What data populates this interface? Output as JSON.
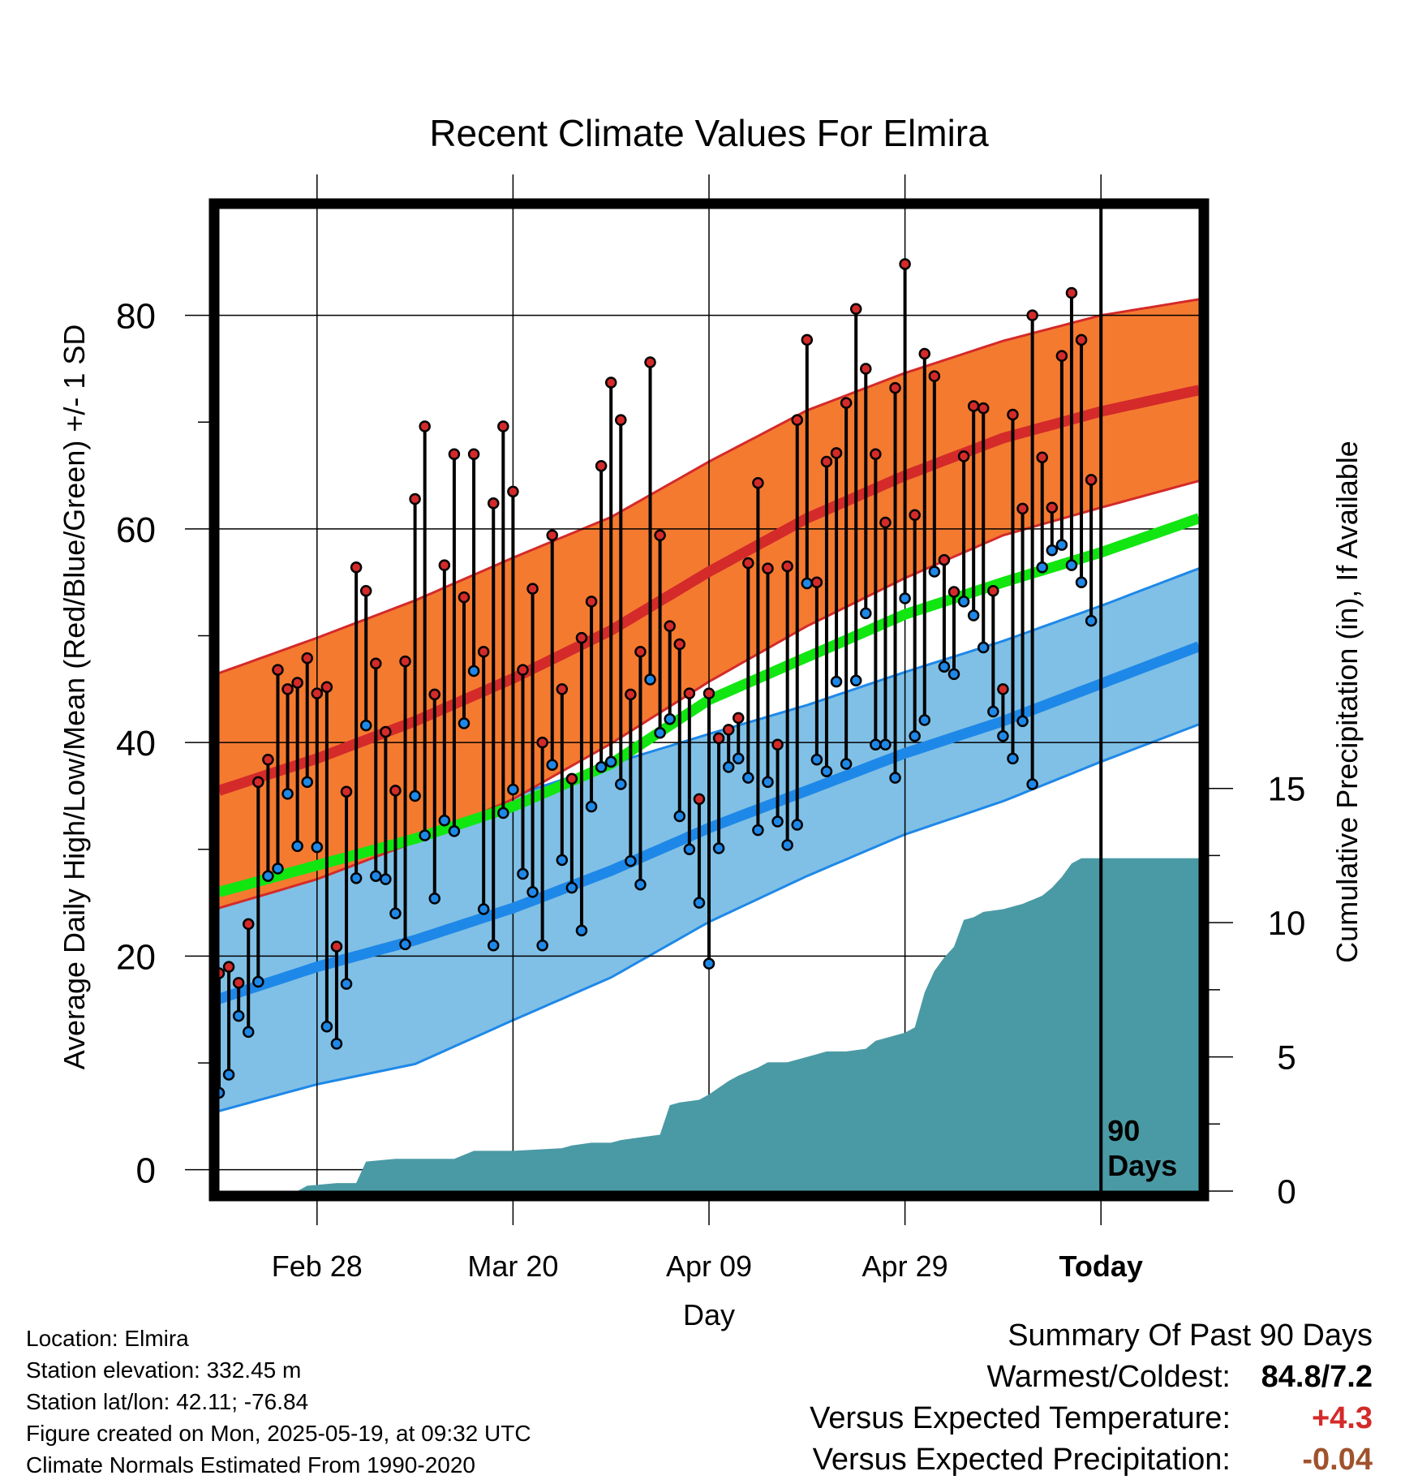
{
  "chart_data": {
    "type": "line",
    "title": "Recent Climate Values For Elmira",
    "xlabel": "Day",
    "ylabel": "Average Daily High/Low/Mean (Red/Blue/Green) +/- 1 SD",
    "y2label": "Cumulative Precipitation (in), If Available",
    "ylim": [
      -2,
      90
    ],
    "y2lim": [
      0,
      36.6
    ],
    "yticks": [
      0,
      20,
      40,
      60,
      80
    ],
    "y2ticks": [
      0,
      5,
      10,
      15
    ],
    "xlim": [
      0,
      100
    ],
    "xticks": [
      {
        "x": 10,
        "label": "Feb 28"
      },
      {
        "x": 30,
        "label": "Mar 20"
      },
      {
        "x": 50,
        "label": "Apr 09"
      },
      {
        "x": 70,
        "label": "Apr 29"
      },
      {
        "x": 90,
        "label": "Today"
      }
    ],
    "today_label": [
      "90",
      "Days"
    ],
    "grid": true,
    "colors": {
      "high_band": "#f47a30",
      "high_line": "#d42a2a",
      "low_band": "#80c0e6",
      "low_line": "#1e88e8",
      "mean_line": "#11e611",
      "precip": "#4a9aa5",
      "high_point": "#d42a2a",
      "low_point": "#1e88e8"
    },
    "normal_high": {
      "x": [
        0,
        10,
        20,
        30,
        40,
        50,
        60,
        70,
        80,
        90,
        100
      ],
      "mean": [
        35.5,
        38.5,
        42,
        46,
        50.5,
        56,
        61,
        65,
        68.5,
        71,
        73
      ],
      "sd": [
        11,
        11.3,
        11.3,
        11.3,
        10.6,
        10.3,
        10.1,
        9.6,
        9.1,
        9,
        8.5
      ]
    },
    "normal_low": {
      "x": [
        0,
        10,
        20,
        30,
        40,
        50,
        60,
        70,
        80,
        90,
        100
      ],
      "mean": [
        16,
        19,
        21.5,
        24.5,
        28,
        32,
        35.5,
        39,
        42,
        45.5,
        49
      ],
      "sd": [
        10.5,
        11,
        11.6,
        10.5,
        10,
        8.8,
        8,
        7.6,
        7.5,
        7.3,
        7.3
      ]
    },
    "normal_mean": {
      "x": [
        0,
        10,
        20,
        30,
        40,
        50,
        60,
        70,
        80,
        90,
        100
      ],
      "values": [
        26,
        28.5,
        31,
        34,
        38,
        44,
        48,
        52,
        55,
        57.8,
        61
      ]
    },
    "daily": {
      "x": [
        0,
        1,
        2,
        3,
        4,
        5,
        6,
        7,
        8,
        9,
        10,
        11,
        12,
        13,
        14,
        15,
        16,
        17,
        18,
        19,
        20,
        21,
        22,
        23,
        24,
        25,
        26,
        27,
        28,
        29,
        30,
        31,
        32,
        33,
        34,
        35,
        36,
        37,
        38,
        39,
        40,
        41,
        42,
        43,
        44,
        45,
        46,
        47,
        48,
        49,
        50,
        51,
        52,
        53,
        54,
        55,
        56,
        57,
        58,
        59,
        60,
        61,
        62,
        63,
        64,
        65,
        66,
        67,
        68,
        69,
        70,
        71,
        72,
        73,
        74,
        75,
        76,
        77,
        78,
        79,
        80,
        81,
        82,
        83,
        84,
        85,
        86,
        87,
        88,
        89
      ],
      "high": [
        18.4,
        19,
        17.5,
        23,
        36.3,
        38.4,
        46.8,
        45,
        45.6,
        47.9,
        44.6,
        45.2,
        20.9,
        35.4,
        56.4,
        54.2,
        47.4,
        41,
        35.5,
        47.6,
        62.8,
        69.6,
        44.5,
        56.6,
        67,
        53.6,
        67,
        48.5,
        62.4,
        69.6,
        63.5,
        46.8,
        54.4,
        40,
        59.4,
        45,
        36.6,
        49.8,
        53.2,
        65.9,
        73.7,
        70.2,
        44.5,
        48.5,
        75.6,
        59.4,
        50.9,
        49.2,
        44.6,
        34.7,
        44.6,
        40.4,
        41.2,
        42.3,
        56.8,
        64.3,
        56.3,
        39.8,
        56.5,
        70.2,
        77.7,
        55,
        66.3,
        67.1,
        71.8,
        80.6,
        75,
        67,
        60.6,
        73.2,
        84.8,
        61.3,
        76.4,
        74.3,
        57.1,
        54.1,
        66.8,
        71.5,
        71.3,
        54.2,
        45,
        70.7,
        61.9,
        80,
        66.7,
        62,
        76.2,
        82.1,
        77.7,
        64.6
      ],
      "low": [
        7.2,
        8.9,
        14.4,
        12.9,
        17.6,
        27.5,
        28.2,
        35.2,
        30.3,
        36.3,
        30.2,
        13.4,
        11.8,
        17.4,
        27.3,
        41.6,
        27.5,
        27.2,
        24,
        21.1,
        35,
        31.3,
        25.4,
        32.7,
        31.7,
        41.8,
        46.7,
        24.4,
        21,
        33.4,
        35.6,
        27.7,
        26,
        21,
        37.9,
        29,
        26.4,
        22.4,
        34,
        37.7,
        38.2,
        36.1,
        28.9,
        26.7,
        45.9,
        40.9,
        42.2,
        33.1,
        30,
        25,
        19.3,
        30.1,
        37.7,
        38.5,
        36.7,
        31.8,
        36.3,
        32.6,
        30.4,
        32.3,
        54.9,
        38.4,
        37.3,
        45.7,
        38,
        45.8,
        52.1,
        39.8,
        39.8,
        36.7,
        53.5,
        40.6,
        42.1,
        56,
        47.1,
        46.4,
        53.2,
        51.9,
        48.9,
        42.9,
        40.6,
        38.5,
        42,
        36.1,
        56.4,
        58,
        58.5,
        56.6,
        55,
        51.4
      ]
    },
    "cumulative_precip": {
      "x": [
        0,
        8,
        9,
        12,
        14,
        15,
        18,
        22,
        24,
        26,
        27,
        30,
        35,
        36,
        38,
        39,
        40,
        41,
        43,
        45,
        46,
        47,
        49,
        50,
        52,
        53,
        55,
        56,
        58,
        60,
        62,
        64,
        66,
        67,
        70,
        71,
        72,
        73,
        74,
        75,
        76,
        77,
        78,
        80,
        82,
        84,
        85,
        86,
        87,
        88,
        89,
        100
      ],
      "values": [
        0,
        0,
        0.2,
        0.3,
        0.3,
        1.1,
        1.2,
        1.2,
        1.2,
        1.5,
        1.5,
        1.5,
        1.6,
        1.7,
        1.8,
        1.8,
        1.8,
        1.9,
        2,
        2.1,
        3.2,
        3.3,
        3.4,
        3.6,
        4.1,
        4.3,
        4.6,
        4.8,
        4.8,
        5,
        5.2,
        5.2,
        5.3,
        5.6,
        5.9,
        6.1,
        7.4,
        8.2,
        8.7,
        9.1,
        10.1,
        10.2,
        10.4,
        10.5,
        10.7,
        11,
        11.3,
        11.7,
        12.2,
        12.4,
        12.4,
        12.4
      ]
    }
  },
  "info": {
    "location": "Location: Elmira",
    "elevation": "Station elevation: 332.45 m",
    "latlon": "Station lat/lon: 42.11; -76.84",
    "created": "Figure created on Mon, 2025-05-19, at 09:32 UTC",
    "normals": "Climate Normals Estimated From 1990-2020"
  },
  "summary": {
    "title": "Summary Of Past 90 Days",
    "warmest_label": "Warmest/Coldest:",
    "warmest_value": "84.8/7.2",
    "temp_label": "Versus Expected Temperature:",
    "temp_value": "+4.3",
    "temp_color": "#d42a2a",
    "precip_label": "Versus Expected Precipitation:",
    "precip_value": "-0.04",
    "precip_color": "#a0522d"
  }
}
